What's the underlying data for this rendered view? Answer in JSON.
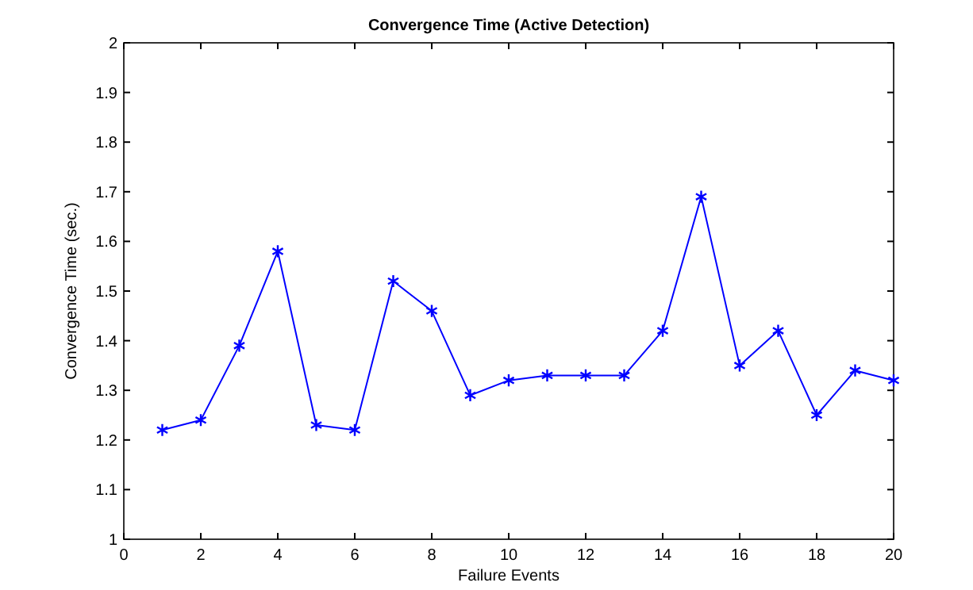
{
  "chart_data": {
    "type": "line",
    "title": "Convergence Time (Active Detection)",
    "xlabel": "Failure Events",
    "ylabel": "Convergence Time (sec.)",
    "x": [
      1,
      2,
      3,
      4,
      5,
      6,
      7,
      8,
      9,
      10,
      11,
      12,
      13,
      14,
      15,
      16,
      17,
      18,
      19,
      20
    ],
    "series": [
      {
        "color": "#0000ff",
        "values": [
          1.22,
          1.24,
          1.39,
          1.58,
          1.23,
          1.22,
          1.52,
          1.46,
          1.29,
          1.32,
          1.33,
          1.33,
          1.33,
          1.42,
          1.69,
          1.35,
          1.42,
          1.25,
          1.34,
          1.32
        ]
      }
    ],
    "xlim": [
      0,
      20
    ],
    "xticks": [
      0,
      2,
      4,
      6,
      8,
      10,
      12,
      14,
      16,
      18,
      20
    ],
    "ylim": [
      1,
      2
    ],
    "yticks": [
      1,
      1.1,
      1.2,
      1.3,
      1.4,
      1.5,
      1.6,
      1.7,
      1.8,
      1.9,
      2
    ],
    "grid": false,
    "marker": "cross",
    "line_style": "solid"
  }
}
